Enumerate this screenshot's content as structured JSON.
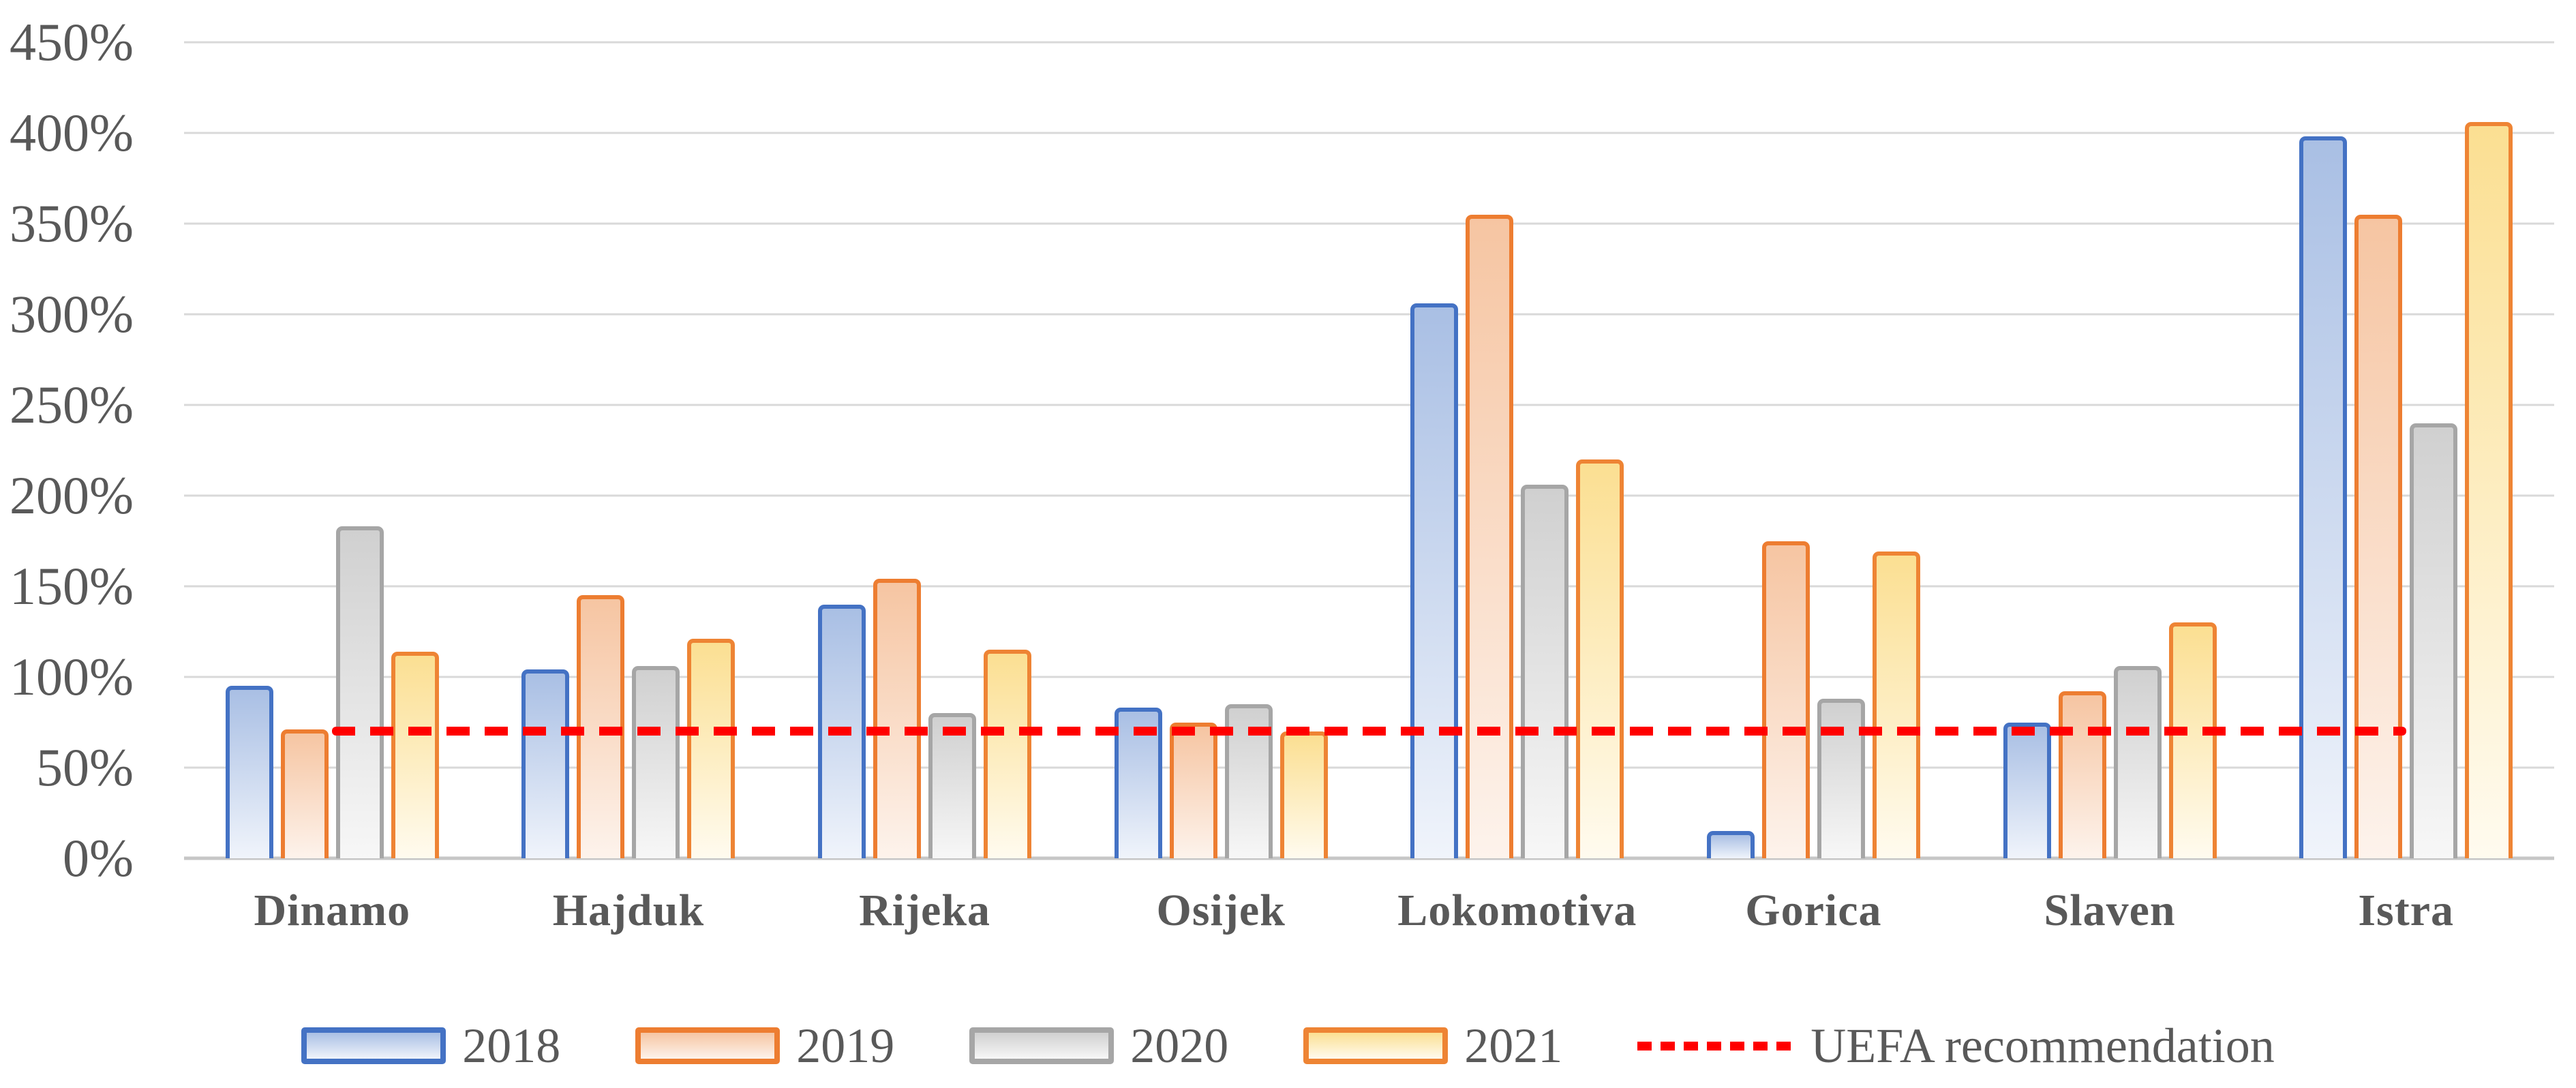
{
  "chart_data": {
    "type": "bar",
    "title": "",
    "xlabel": "",
    "ylabel": "",
    "categories": [
      "Dinamo",
      "Hajduk",
      "Rijeka",
      "Osijek",
      "Lokomotiva",
      "Gorica",
      "Slaven",
      "Istra"
    ],
    "series": [
      {
        "name": "2018",
        "values": [
          95,
          104,
          140,
          83,
          306,
          15,
          75,
          398
        ],
        "border_color": "#4472C4",
        "fill_top": "#A9BFE4",
        "fill_bottom": "#F0F4FB"
      },
      {
        "name": "2019",
        "values": [
          71,
          145,
          154,
          75,
          355,
          175,
          92,
          355
        ],
        "border_color": "#ED7D31",
        "fill_top": "#F6C5A2",
        "fill_bottom": "#FDF3EC"
      },
      {
        "name": "2020",
        "values": [
          183,
          106,
          80,
          85,
          206,
          88,
          106,
          240
        ],
        "border_color": "#A6A6A6",
        "fill_top": "#D0D0D0",
        "fill_bottom": "#F7F7F7"
      },
      {
        "name": "2021",
        "values": [
          114,
          121,
          115,
          70,
          220,
          169,
          130,
          406
        ],
        "border_color": "#EE8434",
        "fill_top": "#FBDF92",
        "fill_bottom": "#FFFBEF"
      }
    ],
    "reference_line": {
      "label": "UEFA recommendation",
      "value": 70,
      "color": "#FF0000",
      "style": "dashed",
      "span": "from first category center to last category center"
    },
    "ylim": [
      0,
      450
    ],
    "ytick_step": 50,
    "ytick_labels": [
      "450%",
      "400%",
      "350%",
      "300%",
      "250%",
      "200%",
      "150%",
      "100%",
      "50%",
      "0%"
    ],
    "grid": true,
    "legend_position": "bottom"
  },
  "styles": {
    "background": "#FFFFFF",
    "grid_color": "#D9D9D9",
    "axis_line_color": "#C6C6C6",
    "text_color": "#595959"
  }
}
